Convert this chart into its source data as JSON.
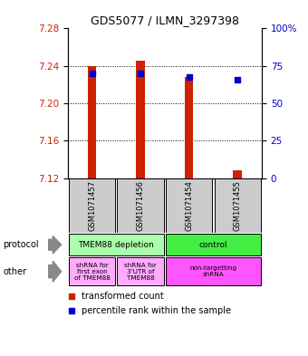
{
  "title": "GDS5077 / ILMN_3297398",
  "samples": [
    "GSM1071457",
    "GSM1071456",
    "GSM1071454",
    "GSM1071455"
  ],
  "bar_bottoms": [
    7.12,
    7.12,
    7.12,
    7.12
  ],
  "bar_tops": [
    7.24,
    7.246,
    7.228,
    7.128
  ],
  "percentile_values": [
    7.232,
    7.232,
    7.228,
    7.225
  ],
  "ylim_left": [
    7.12,
    7.28
  ],
  "yticks_left": [
    7.12,
    7.16,
    7.2,
    7.24,
    7.28
  ],
  "yticks_right": [
    0,
    25,
    50,
    75,
    100
  ],
  "bar_color": "#cc2200",
  "percentile_color": "#0000cc",
  "left_axis_color": "#cc2200",
  "right_axis_color": "#0000cc",
  "legend_red_label": "transformed count",
  "legend_blue_label": "percentile rank within the sample"
}
